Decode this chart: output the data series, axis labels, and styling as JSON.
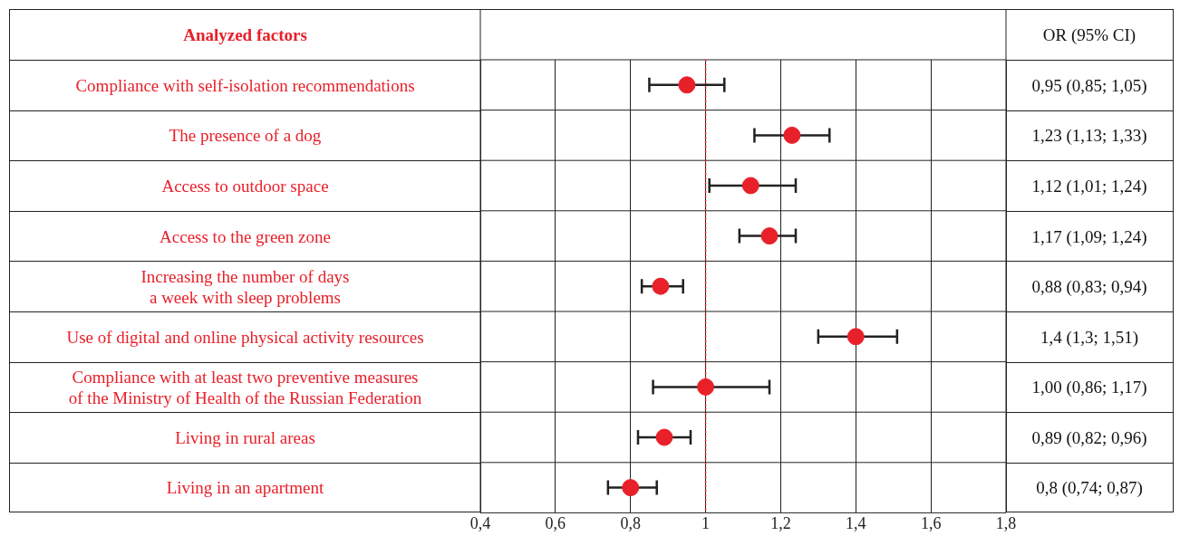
{
  "chart_data": {
    "type": "scatter",
    "orientation": "horizontal",
    "ylabel": "Analyzed factors",
    "y2label": "OR (95% CI)",
    "categories": [
      "Compliance with self-isolation recommendations",
      "The presence of a dog",
      "Access to outdoor space",
      "Access to the green zone",
      "Increasing the number of days\na week with sleep problems",
      "Use of digital and online physical activity resources",
      "Compliance with at least two preventive measures\nof the Ministry of Health of the Russian Federation",
      "Living in rural areas",
      "Living in an apartment"
    ],
    "series": [
      {
        "color": "#e8202a",
        "values": [
          0.95,
          1.23,
          1.12,
          1.17,
          0.88,
          1.4,
          1.0,
          0.89,
          0.8
        ],
        "errors": [
          [
            0.85,
            1.05
          ],
          [
            1.13,
            1.33
          ],
          [
            1.01,
            1.24
          ],
          [
            1.09,
            1.24
          ],
          [
            0.83,
            0.94
          ],
          [
            1.3,
            1.51
          ],
          [
            0.86,
            1.17
          ],
          [
            0.82,
            0.96
          ],
          [
            0.74,
            0.87
          ]
        ],
        "value_labels": [
          "0,95 (0,85; 1,05)",
          "1,23 (1,13; 1,33)",
          "1,12 (1,01; 1,24)",
          "1,17 (1,09; 1,24)",
          "0,88 (0,83; 0,94)",
          "1,4 (1,3; 1,51)",
          "1,00 (0,86; 1,17)",
          "0,89 (0,82; 0,96)",
          "0,8 (0,74; 0,87)"
        ]
      }
    ],
    "xlim": [
      0.4,
      1.8
    ],
    "xticks": [
      {
        "value": 0.4,
        "label": "0,4"
      },
      {
        "value": 0.6,
        "label": "0,6"
      },
      {
        "value": 0.8,
        "label": "0,8"
      },
      {
        "value": 1,
        "label": "1"
      },
      {
        "value": 1.2,
        "label": "1,2"
      },
      {
        "value": 1.4,
        "label": "1,4"
      },
      {
        "value": 1.6,
        "label": "1,6"
      },
      {
        "value": 1.8,
        "label": "1,8"
      }
    ],
    "grid": "x",
    "marker": "circle",
    "ref_lines": [
      {
        "axis": "x",
        "value": 1,
        "color": "#e8202a",
        "line_style": "dotted"
      }
    ]
  }
}
